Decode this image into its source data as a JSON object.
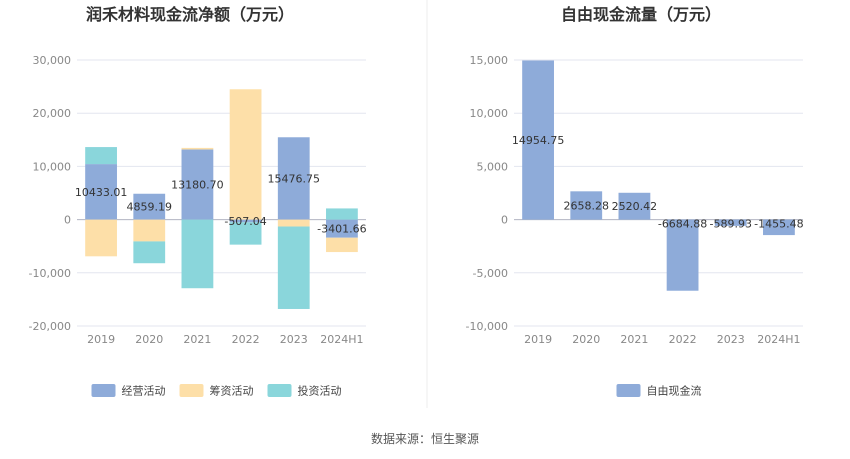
{
  "source": "数据来源：恒生聚源",
  "chart_data": [
    {
      "type": "bar",
      "stacked": true,
      "title": "润禾材料现金流净额（万元）",
      "categories": [
        "2019",
        "2020",
        "2021",
        "2022",
        "2023",
        "2024H1"
      ],
      "ylim": [
        -20000,
        30000
      ],
      "yticks": [
        30000,
        20000,
        10000,
        0,
        -10000,
        -20000
      ],
      "ytick_labels": [
        "30,000",
        "20,000",
        "10,000",
        "0",
        "-10,000",
        "-20,000"
      ],
      "grid": true,
      "legend_position": "bottom",
      "series": [
        {
          "name": "经营活动",
          "color": "#8eabd9",
          "values": [
            10433.01,
            4859.19,
            13180.7,
            -507.04,
            15476.75,
            -3401.66
          ]
        },
        {
          "name": "筹资活动",
          "color": "#fddfa8",
          "values": [
            -6900,
            -4100,
            300,
            24500,
            -1300,
            -2700
          ]
        },
        {
          "name": "投资活动",
          "color": "#8ad6db",
          "values": [
            3200,
            -4100,
            -12900,
            -4200,
            -15500,
            2100
          ]
        }
      ],
      "data_labels": [
        "10433.01",
        "4859.19",
        "13180.70",
        "-507.04",
        "15476.75",
        "-3401.66"
      ]
    },
    {
      "type": "bar",
      "title": "自由现金流量（万元）",
      "categories": [
        "2019",
        "2020",
        "2021",
        "2022",
        "2023",
        "2024H1"
      ],
      "ylim": [
        -10000,
        15000
      ],
      "yticks": [
        15000,
        10000,
        5000,
        0,
        -5000,
        -10000
      ],
      "ytick_labels": [
        "15,000",
        "10,000",
        "5,000",
        "0",
        "-5,000",
        "-10,000"
      ],
      "grid": true,
      "legend_position": "bottom",
      "series": [
        {
          "name": "自由现金流",
          "color": "#8eabd9",
          "values": [
            14954.75,
            2658.28,
            2520.42,
            -6684.88,
            -589.93,
            -1455.48
          ]
        }
      ],
      "data_labels": [
        "14954.75",
        "2658.28",
        "2520.42",
        "-6684.88",
        "-589.93",
        "-1455.48"
      ]
    }
  ]
}
